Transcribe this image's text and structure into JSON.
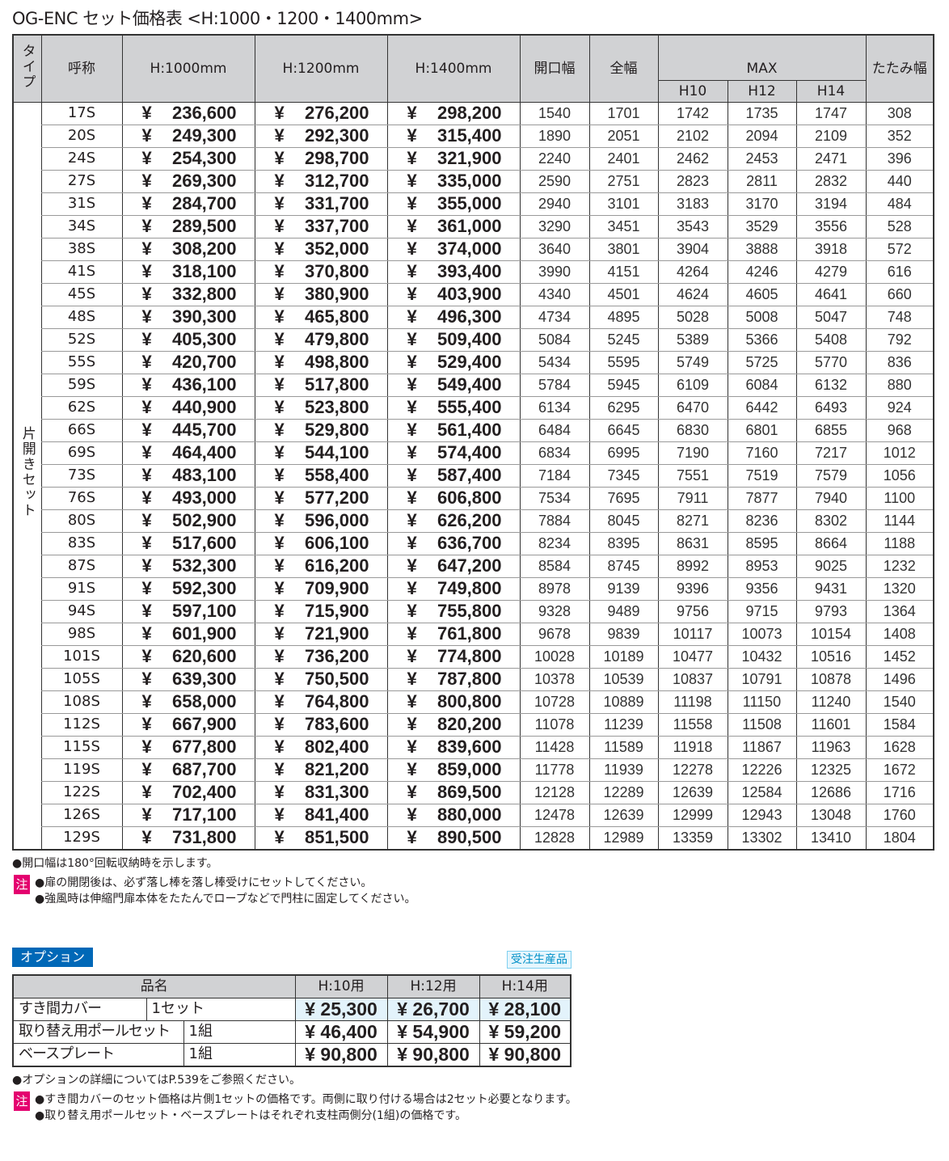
{
  "title": "OG-ENC セット価格表 <H:1000・1200・1400mm>",
  "headers": {
    "type": "タイプ",
    "name": "呼称",
    "h1000": "H:1000mm",
    "h1200": "H:1200mm",
    "h1400": "H:1400mm",
    "opening": "開口幅",
    "total": "全幅",
    "max": "MAX",
    "h10": "H10",
    "h12": "H12",
    "h14": "H14",
    "folded": "たたみ幅"
  },
  "type_label": "片開きセット",
  "currency": "¥",
  "rows": [
    [
      "17S",
      "236,600",
      "276,200",
      "298,200",
      "1540",
      "1701",
      "1742",
      "1735",
      "1747",
      "308"
    ],
    [
      "20S",
      "249,300",
      "292,300",
      "315,400",
      "1890",
      "2051",
      "2102",
      "2094",
      "2109",
      "352"
    ],
    [
      "24S",
      "254,300",
      "298,700",
      "321,900",
      "2240",
      "2401",
      "2462",
      "2453",
      "2471",
      "396"
    ],
    [
      "27S",
      "269,300",
      "312,700",
      "335,000",
      "2590",
      "2751",
      "2823",
      "2811",
      "2832",
      "440"
    ],
    [
      "31S",
      "284,700",
      "331,700",
      "355,000",
      "2940",
      "3101",
      "3183",
      "3170",
      "3194",
      "484"
    ],
    [
      "34S",
      "289,500",
      "337,700",
      "361,000",
      "3290",
      "3451",
      "3543",
      "3529",
      "3556",
      "528"
    ],
    [
      "38S",
      "308,200",
      "352,000",
      "374,000",
      "3640",
      "3801",
      "3904",
      "3888",
      "3918",
      "572"
    ],
    [
      "41S",
      "318,100",
      "370,800",
      "393,400",
      "3990",
      "4151",
      "4264",
      "4246",
      "4279",
      "616"
    ],
    [
      "45S",
      "332,800",
      "380,900",
      "403,900",
      "4340",
      "4501",
      "4624",
      "4605",
      "4641",
      "660"
    ],
    [
      "48S",
      "390,300",
      "465,800",
      "496,300",
      "4734",
      "4895",
      "5028",
      "5008",
      "5047",
      "748"
    ],
    [
      "52S",
      "405,300",
      "479,800",
      "509,400",
      "5084",
      "5245",
      "5389",
      "5366",
      "5408",
      "792"
    ],
    [
      "55S",
      "420,700",
      "498,800",
      "529,400",
      "5434",
      "5595",
      "5749",
      "5725",
      "5770",
      "836"
    ],
    [
      "59S",
      "436,100",
      "517,800",
      "549,400",
      "5784",
      "5945",
      "6109",
      "6084",
      "6132",
      "880"
    ],
    [
      "62S",
      "440,900",
      "523,800",
      "555,400",
      "6134",
      "6295",
      "6470",
      "6442",
      "6493",
      "924"
    ],
    [
      "66S",
      "445,700",
      "529,800",
      "561,400",
      "6484",
      "6645",
      "6830",
      "6801",
      "6855",
      "968"
    ],
    [
      "69S",
      "464,400",
      "544,100",
      "574,400",
      "6834",
      "6995",
      "7190",
      "7160",
      "7217",
      "1012"
    ],
    [
      "73S",
      "483,100",
      "558,400",
      "587,400",
      "7184",
      "7345",
      "7551",
      "7519",
      "7579",
      "1056"
    ],
    [
      "76S",
      "493,000",
      "577,200",
      "606,800",
      "7534",
      "7695",
      "7911",
      "7877",
      "7940",
      "1100"
    ],
    [
      "80S",
      "502,900",
      "596,000",
      "626,200",
      "7884",
      "8045",
      "8271",
      "8236",
      "8302",
      "1144"
    ],
    [
      "83S",
      "517,600",
      "606,100",
      "636,700",
      "8234",
      "8395",
      "8631",
      "8595",
      "8664",
      "1188"
    ],
    [
      "87S",
      "532,300",
      "616,200",
      "647,200",
      "8584",
      "8745",
      "8992",
      "8953",
      "9025",
      "1232"
    ],
    [
      "91S",
      "592,300",
      "709,900",
      "749,800",
      "8978",
      "9139",
      "9396",
      "9356",
      "9431",
      "1320"
    ],
    [
      "94S",
      "597,100",
      "715,900",
      "755,800",
      "9328",
      "9489",
      "9756",
      "9715",
      "9793",
      "1364"
    ],
    [
      "98S",
      "601,900",
      "721,900",
      "761,800",
      "9678",
      "9839",
      "10117",
      "10073",
      "10154",
      "1408"
    ],
    [
      "101S",
      "620,600",
      "736,200",
      "774,800",
      "10028",
      "10189",
      "10477",
      "10432",
      "10516",
      "1452"
    ],
    [
      "105S",
      "639,300",
      "750,500",
      "787,800",
      "10378",
      "10539",
      "10837",
      "10791",
      "10878",
      "1496"
    ],
    [
      "108S",
      "658,000",
      "764,800",
      "800,800",
      "10728",
      "10889",
      "11198",
      "11150",
      "11240",
      "1540"
    ],
    [
      "112S",
      "667,900",
      "783,600",
      "820,200",
      "11078",
      "11239",
      "11558",
      "11508",
      "11601",
      "1584"
    ],
    [
      "115S",
      "677,800",
      "802,400",
      "839,600",
      "11428",
      "11589",
      "11918",
      "11867",
      "11963",
      "1628"
    ],
    [
      "119S",
      "687,700",
      "821,200",
      "859,000",
      "11778",
      "11939",
      "12278",
      "12226",
      "12325",
      "1672"
    ],
    [
      "122S",
      "702,400",
      "831,300",
      "869,500",
      "12128",
      "12289",
      "12639",
      "12584",
      "12686",
      "1716"
    ],
    [
      "126S",
      "717,100",
      "841,400",
      "880,000",
      "12478",
      "12639",
      "12999",
      "12943",
      "13048",
      "1760"
    ],
    [
      "129S",
      "731,800",
      "851,500",
      "890,500",
      "12828",
      "12989",
      "13359",
      "13302",
      "13410",
      "1804"
    ]
  ],
  "notes": {
    "opening": "●開口幅は180°回転収納時を示します。",
    "chu": "注",
    "n1": "●扉の開閉後は、必ず落し棒を落し棒受けにセットしてください。",
    "n2": "●強風時は伸縮門扉本体をたたんでロープなどで門柱に固定してください。"
  },
  "options": {
    "badge": "オプション",
    "made_to_order": "受注生産品",
    "headers": {
      "name": "品名",
      "h10": "H:10用",
      "h12": "H:12用",
      "h14": "H:14用"
    },
    "items": [
      {
        "name": "すき間カバー",
        "unit": "1セット",
        "h10": "¥ 25,300",
        "h12": "¥ 26,700",
        "h14": "¥ 28,100"
      },
      {
        "name": "取り替え用ポールセット",
        "unit": "1組",
        "h10": "¥ 46,400",
        "h12": "¥ 54,900",
        "h14": "¥ 59,200"
      },
      {
        "name": "ベースプレート",
        "unit": "1組",
        "h10": "¥ 90,800",
        "h12": "¥ 90,800",
        "h14": "¥ 90,800"
      }
    ],
    "note_ref": "●オプションの詳細についてはP.539をご参照ください。",
    "chu": "注",
    "n1": "●すき間カバーのセット価格は片側1セットの価格です。両側に取り付ける場合は2セット必要となります。",
    "n2": "●取り替え用ポールセット・ベースプレートはそれぞれ支柱両側分(1組)の価格です。"
  },
  "colors": {
    "header_bg": "#d1d2d4",
    "badge": "#0068b7",
    "chu": "#e4006f",
    "highlight": "#e3f3fb"
  }
}
